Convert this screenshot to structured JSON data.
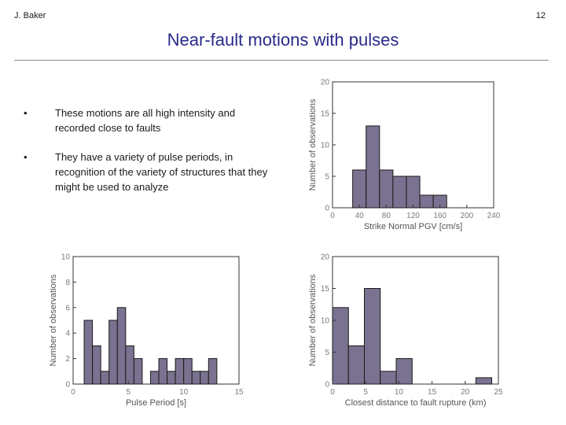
{
  "header": {
    "author": "J. Baker",
    "page_number": "12"
  },
  "title": "Near-fault motions with pulses",
  "bullets": [
    {
      "marker": "•",
      "text": "These motions are all high intensity and recorded close to faults"
    },
    {
      "marker": "•",
      "text": "They have a variety of pulse periods, in recognition of the variety of structures that they might be used to analyze"
    }
  ],
  "colors": {
    "bar_fill": "#7a7290",
    "bar_stroke": "#1a1a1a",
    "axis_text": "#7a7a7a",
    "title": "#2a2a8a"
  },
  "chart_data": [
    {
      "id": "pgv",
      "type": "bar",
      "xlabel": "Strike Normal PGV [cm/s]",
      "ylabel": "Number of observations",
      "xlim": [
        0,
        240
      ],
      "ylim": [
        0,
        20
      ],
      "xticks": [
        0,
        40,
        80,
        120,
        160,
        200,
        240
      ],
      "yticks": [
        0,
        5,
        10,
        15,
        20
      ],
      "bin_edges": [
        30,
        50,
        70,
        90,
        110,
        130,
        150,
        170
      ],
      "values": [
        6,
        13,
        6,
        5,
        5,
        2,
        2
      ],
      "grid": false
    },
    {
      "id": "period",
      "type": "bar",
      "xlabel": "Pulse Period [s]",
      "ylabel": "Number of observations",
      "xlim": [
        0,
        15
      ],
      "ylim": [
        0,
        10
      ],
      "xticks": [
        0,
        5,
        10,
        15
      ],
      "yticks": [
        0,
        2,
        4,
        6,
        8,
        10
      ],
      "bin_edges": [
        1,
        1.75,
        2.5,
        3.25,
        4,
        4.75,
        5.5,
        6.25,
        7,
        7.75,
        8.5,
        9.25,
        10,
        10.75,
        11.5,
        12.25,
        13
      ],
      "values": [
        5,
        3,
        1,
        5,
        6,
        3,
        2,
        0,
        1,
        2,
        1,
        2,
        2,
        1,
        1,
        2
      ],
      "grid": false
    },
    {
      "id": "distance",
      "type": "bar",
      "xlabel": "Closest distance to fault rupture (km)",
      "ylabel": "Number of observations",
      "xlim": [
        0,
        25
      ],
      "ylim": [
        0,
        20
      ],
      "xticks": [
        0,
        5,
        10,
        15,
        20,
        25
      ],
      "yticks": [
        0,
        5,
        10,
        15,
        20
      ],
      "bin_edges": [
        0,
        2.4,
        4.8,
        7.2,
        9.6,
        12,
        14.4,
        16.8,
        19.2,
        21.6,
        24
      ],
      "values": [
        12,
        6,
        15,
        2,
        4,
        0,
        0,
        0,
        0,
        1
      ],
      "grid": false
    }
  ]
}
